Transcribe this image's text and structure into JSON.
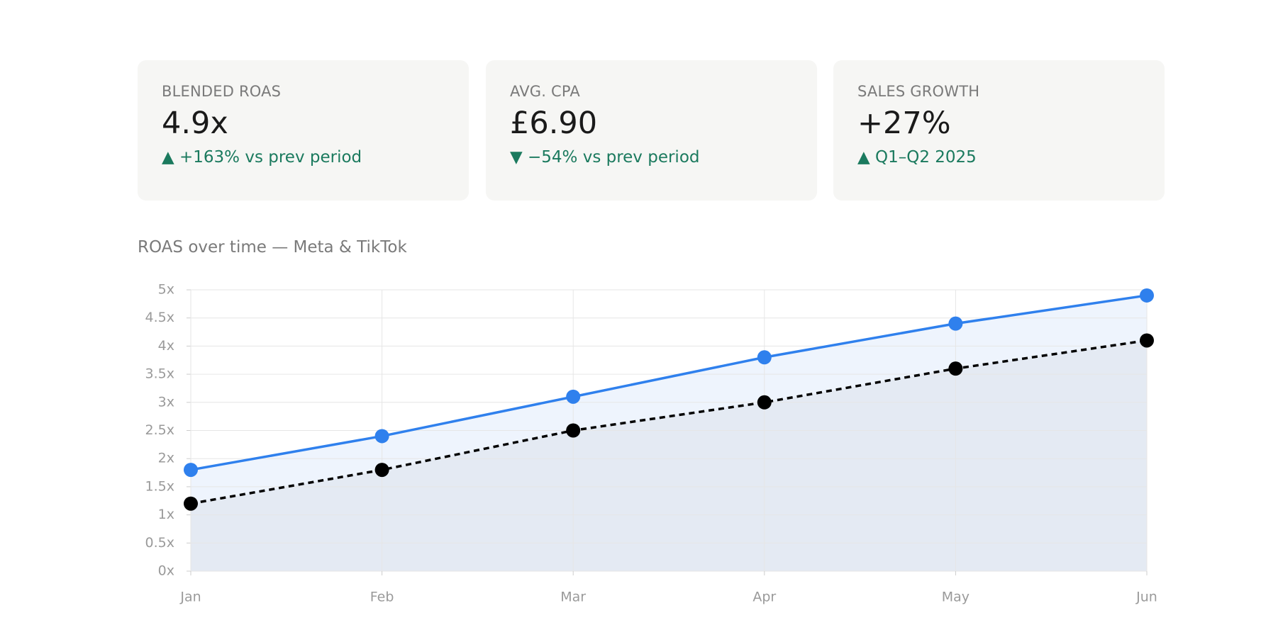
{
  "cards": [
    {
      "label": "BLENDED ROAS",
      "value": "4.9x",
      "delta": "▲ +163% vs prev period"
    },
    {
      "label": "AVG. CPA",
      "value": "£6.90",
      "delta": "▼ −54% vs prev period"
    },
    {
      "label": "SALES GROWTH",
      "value": "+27%",
      "delta": "▲ Q1–Q2 2025"
    }
  ],
  "chart_data": {
    "type": "line",
    "title": "ROAS over time — Meta & TikTok",
    "categories": [
      "Jan",
      "Feb",
      "Mar",
      "Apr",
      "May",
      "Jun"
    ],
    "series": [
      {
        "color": "#2f80ed",
        "style": "solid",
        "area_color": "#eef4fd",
        "values": [
          1.8,
          2.4,
          3.1,
          3.8,
          4.4,
          4.9
        ]
      },
      {
        "color": "#000000",
        "style": "dashed",
        "area_color": "#e4eaf3",
        "values": [
          1.2,
          1.8,
          2.5,
          3.0,
          3.6,
          4.1
        ]
      }
    ],
    "ylim": [
      0,
      5
    ],
    "yticks": [
      {
        "value": 0,
        "label": "0x"
      },
      {
        "value": 0.5,
        "label": "0.5x"
      },
      {
        "value": 1,
        "label": "1x"
      },
      {
        "value": 1.5,
        "label": "1.5x"
      },
      {
        "value": 2,
        "label": "2x"
      },
      {
        "value": 2.5,
        "label": "2.5x"
      },
      {
        "value": 3,
        "label": "3x"
      },
      {
        "value": 3.5,
        "label": "3.5x"
      },
      {
        "value": 4,
        "label": "4x"
      },
      {
        "value": 4.5,
        "label": "4.5x"
      },
      {
        "value": 5,
        "label": "5x"
      }
    ],
    "grid": true
  }
}
